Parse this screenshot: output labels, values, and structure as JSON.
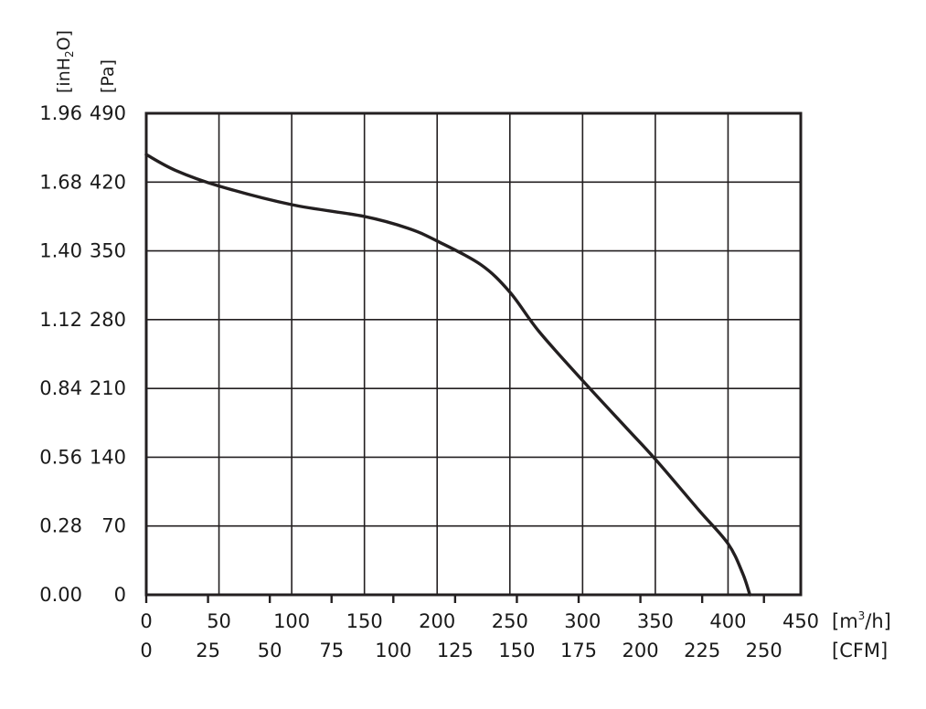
{
  "chart_data": {
    "type": "line",
    "title": "",
    "grid": true,
    "x_primary": {
      "label": "[m³/h]",
      "unit_base": "[m",
      "unit_sup": "3",
      "unit_tail": "/h]",
      "range": [
        0,
        450
      ],
      "ticks": [
        "0",
        "50",
        "100",
        "150",
        "200",
        "250",
        "300",
        "350",
        "400",
        "450"
      ]
    },
    "x_secondary": {
      "label": "[CFM]",
      "range": [
        0,
        264.9
      ],
      "tick_values": [
        0,
        25,
        50,
        75,
        100,
        125,
        150,
        175,
        200,
        225,
        250
      ],
      "ticks": [
        "0",
        "25",
        "50",
        "75",
        "100",
        "125",
        "150",
        "175",
        "200",
        "225",
        "250"
      ]
    },
    "y_primary": {
      "label": "[Pa]",
      "range": [
        0,
        490
      ],
      "ticks": [
        "0",
        "70",
        "140",
        "210",
        "280",
        "350",
        "420",
        "490"
      ]
    },
    "y_secondary": {
      "label": "[inH2O]",
      "label_main": "[inH",
      "label_sub": "2",
      "label_tail": "O]",
      "ticks": [
        "0.00",
        "0.28",
        "0.56",
        "0.84",
        "1.12",
        "1.40",
        "1.68",
        "1.96"
      ]
    },
    "series": [
      {
        "x": [
          0,
          20,
          50,
          100,
          150,
          180,
          200,
          230,
          250,
          270,
          300,
          330,
          350,
          380,
          400,
          410,
          415
        ],
        "y": [
          448,
          432,
          416,
          397,
          385,
          373,
          360,
          336,
          308,
          268,
          218,
          170,
          138,
          86,
          52,
          22,
          0
        ],
        "color": "#231f20"
      }
    ]
  }
}
